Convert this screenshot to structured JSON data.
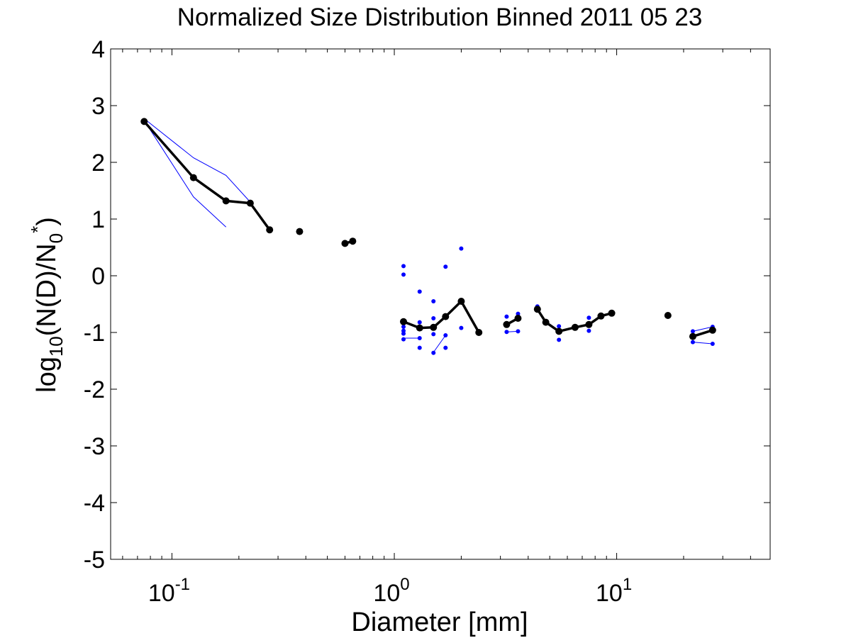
{
  "chart_data": {
    "type": "scatter",
    "title": "Normalized Size Distribution Binned 2011 05 23",
    "xlabel": "Diameter [mm]",
    "ylabel": {
      "base": "log",
      "sub1": "10",
      "mid": "(N(D)/N",
      "sub2": "0",
      "sup": "*",
      "end": ")"
    },
    "x_scale": "log",
    "xlim": [
      0.053,
      49
    ],
    "ylim": [
      -5,
      4
    ],
    "grid": false,
    "legend": "none",
    "y_ticks": [
      4,
      3,
      2,
      1,
      0,
      -1,
      -2,
      -3,
      -4,
      -5
    ],
    "y_tick_labels": [
      "4",
      "3",
      "2",
      "1",
      "0",
      "-1",
      "-2",
      "-3",
      "-4",
      "-5"
    ],
    "x_tick_labels": [
      {
        "value": 0.1,
        "base": "10",
        "exp": "-1"
      },
      {
        "value": 1,
        "base": "10",
        "exp": "0"
      },
      {
        "value": 10,
        "base": "10",
        "exp": "1"
      }
    ],
    "colors": {
      "mean": "#000000",
      "individual": "#0000ff"
    },
    "series": [
      {
        "role": "mean",
        "segments": [
          [
            [
              0.075,
              2.72
            ],
            [
              0.125,
              1.73
            ],
            [
              0.175,
              1.32
            ],
            [
              0.225,
              1.28
            ],
            [
              0.275,
              0.81
            ]
          ],
          [
            [
              0.375,
              0.78
            ]
          ],
          [
            [
              0.6,
              0.57
            ],
            [
              0.65,
              0.61
            ]
          ],
          [
            [
              1.1,
              -0.81
            ],
            [
              1.3,
              -0.92
            ],
            [
              1.5,
              -0.91
            ],
            [
              1.7,
              -0.72
            ],
            [
              2.0,
              -0.45
            ],
            [
              2.4,
              -1.0
            ]
          ],
          [
            [
              3.2,
              -0.86
            ],
            [
              3.6,
              -0.75
            ]
          ],
          [
            [
              4.4,
              -0.59
            ],
            [
              4.8,
              -0.82
            ],
            [
              5.5,
              -0.98
            ],
            [
              6.5,
              -0.91
            ],
            [
              7.5,
              -0.86
            ],
            [
              8.5,
              -0.71
            ],
            [
              9.5,
              -0.66
            ]
          ],
          [
            [
              17.0,
              -0.7
            ]
          ],
          [
            [
              22.0,
              -1.07
            ],
            [
              27.0,
              -0.96
            ]
          ]
        ]
      },
      {
        "role": "individual",
        "segments": [
          [
            [
              0.075,
              2.77
            ],
            [
              0.125,
              2.08
            ],
            [
              0.175,
              1.77
            ],
            [
              0.225,
              1.3
            ]
          ],
          [
            [
              0.075,
              2.74
            ],
            [
              0.125,
              1.39
            ],
            [
              0.175,
              0.86
            ]
          ],
          [
            [
              1.1,
              -1.1
            ],
            [
              1.3,
              -1.1
            ]
          ],
          [
            [
              1.5,
              -1.35
            ],
            [
              1.7,
              -1.05
            ]
          ],
          [
            [
              3.2,
              -0.99
            ],
            [
              3.6,
              -0.98
            ]
          ],
          [
            [
              22.0,
              -1.17
            ],
            [
              27.0,
              -1.2
            ]
          ],
          [
            [
              22.0,
              -0.98
            ],
            [
              27.0,
              -0.9
            ]
          ]
        ],
        "points": [
          [
            1.1,
            0.17
          ],
          [
            1.1,
            0.02
          ],
          [
            1.1,
            -0.9
          ],
          [
            1.1,
            -0.97
          ],
          [
            1.1,
            -1.02
          ],
          [
            1.1,
            -1.12
          ],
          [
            1.3,
            -0.28
          ],
          [
            1.3,
            -0.82
          ],
          [
            1.3,
            -1.1
          ],
          [
            1.3,
            -1.27
          ],
          [
            1.5,
            -0.45
          ],
          [
            1.5,
            -0.75
          ],
          [
            1.5,
            -1.03
          ],
          [
            1.5,
            -1.36
          ],
          [
            1.7,
            0.16
          ],
          [
            1.7,
            -0.73
          ],
          [
            1.7,
            -1.05
          ],
          [
            1.7,
            -1.27
          ],
          [
            2.0,
            0.48
          ],
          [
            2.0,
            -0.92
          ],
          [
            3.2,
            -0.72
          ],
          [
            3.2,
            -0.99
          ],
          [
            3.6,
            -0.67
          ],
          [
            3.6,
            -0.98
          ],
          [
            4.4,
            -0.54
          ],
          [
            5.5,
            -0.89
          ],
          [
            5.5,
            -1.13
          ],
          [
            7.5,
            -0.74
          ],
          [
            7.5,
            -0.97
          ],
          [
            22.0,
            -0.98
          ],
          [
            22.0,
            -1.17
          ],
          [
            27.0,
            -0.9
          ],
          [
            27.0,
            -1.2
          ]
        ]
      }
    ]
  }
}
